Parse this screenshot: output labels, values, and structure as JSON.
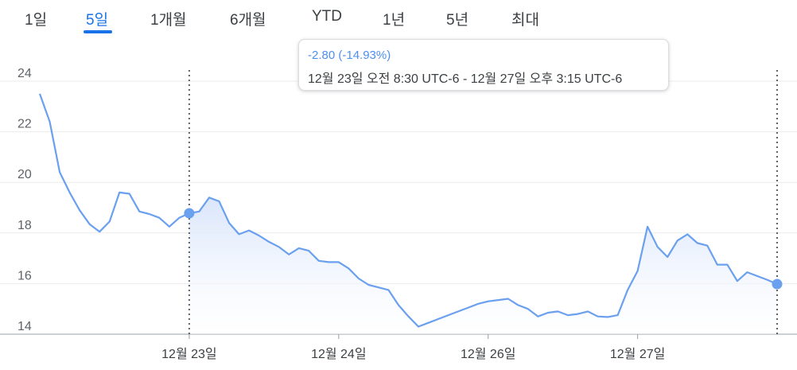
{
  "tabs": [
    {
      "label": "1일",
      "active": false
    },
    {
      "label": "5일",
      "active": true
    },
    {
      "label": "1개월",
      "active": false
    },
    {
      "label": "6개월",
      "active": false
    },
    {
      "label": "YTD",
      "active": false
    },
    {
      "label": "1년",
      "active": false
    },
    {
      "label": "5년",
      "active": false
    },
    {
      "label": "최대",
      "active": false
    }
  ],
  "tooltip": {
    "change": "-2.80 (-14.93%)",
    "range": "12월 23일 오전 8:30 UTC-6 - 12월 27일 오후 3:15 UTC-6"
  },
  "colors": {
    "line": "#6aa0ee",
    "fill_top": "#d6e3fb",
    "active_tab": "#1a73e8",
    "grid": "#ebebeb",
    "marker_line": "#5f6368"
  },
  "chart_data": {
    "type": "line",
    "title": "",
    "xlabel": "",
    "ylabel": "",
    "ylim": [
      14,
      24
    ],
    "yticks": [
      14,
      16,
      18,
      20,
      22,
      24
    ],
    "ytick_labels": [
      "14",
      "16",
      "18",
      "20",
      "22",
      "24"
    ],
    "x_tick_labels": [
      "12월 23일",
      "12월 24일",
      "12월 26일",
      "12월 27일"
    ],
    "x_tick_index": [
      15,
      30,
      45,
      60
    ],
    "grid": true,
    "selection": {
      "start_index": 15,
      "end_index": 74,
      "start_value": 18.78,
      "end_value": 15.98
    },
    "series": [
      {
        "values": [
          23.5,
          22.4,
          20.4,
          19.6,
          18.9,
          18.35,
          18.05,
          18.45,
          19.6,
          19.55,
          18.85,
          18.75,
          18.6,
          18.25,
          18.6,
          18.78,
          18.85,
          19.4,
          19.25,
          18.4,
          17.95,
          18.1,
          17.9,
          17.65,
          17.45,
          17.15,
          17.4,
          17.3,
          16.9,
          16.85,
          16.85,
          16.6,
          16.2,
          15.95,
          15.85,
          15.75,
          15.15,
          14.7,
          14.3,
          14.45,
          14.6,
          14.75,
          14.9,
          15.05,
          15.2,
          15.3,
          15.35,
          15.4,
          15.15,
          15.0,
          14.7,
          14.85,
          14.9,
          14.75,
          14.8,
          14.9,
          14.7,
          14.68,
          14.75,
          15.75,
          16.5,
          18.25,
          17.45,
          17.05,
          17.7,
          17.95,
          17.6,
          17.5,
          16.75,
          16.75,
          16.1,
          16.45,
          16.3,
          16.15,
          15.98
        ]
      }
    ]
  }
}
